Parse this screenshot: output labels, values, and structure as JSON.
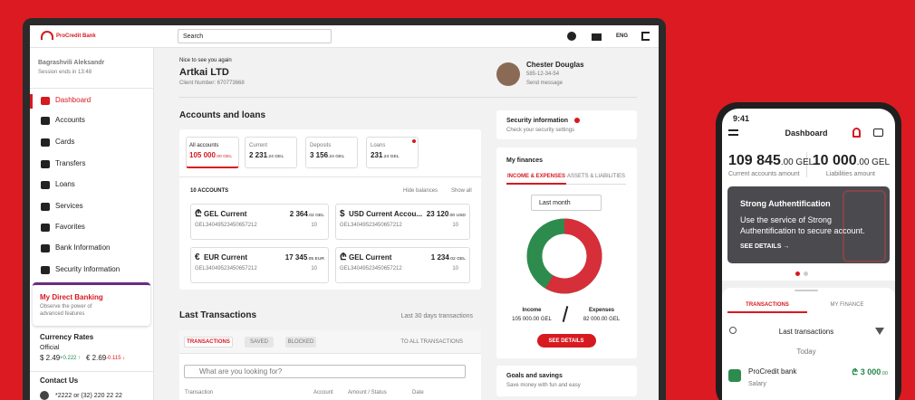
{
  "topbar": {
    "logo": "ProCredit Bank",
    "search": "Search",
    "language": "ENG"
  },
  "sidebar": {
    "user": "Bagrashvili Aleksandr",
    "session": "Session ends in 13:48",
    "menu": [
      "Dashboard",
      "Accounts",
      "Cards",
      "Transfers",
      "Loans",
      "Services",
      "Favorites",
      "Bank Information",
      "Security Information"
    ],
    "promo": {
      "title": "My Direct Banking",
      "text": "Observe the power of advanced features"
    },
    "currency": {
      "title": "Currency Rates",
      "type": "Official",
      "usd": "$ 2.49",
      "usd_change": "+0.222 ↑",
      "eur": "€ 2.69",
      "eur_change": "-0.115 ↓"
    },
    "contact": {
      "title": "Contact Us",
      "phone": "*2222 or (32) 220 22 22"
    }
  },
  "header": {
    "greeting": "Nice to see you again",
    "company": "Artkai LTD",
    "client": "Client Number: 670773668",
    "user": {
      "name": "Chester Douglas",
      "phone": "585-12-34-54",
      "action": "Send message"
    }
  },
  "accounts": {
    "title": "Accounts and loans",
    "tabs": [
      {
        "label": "All accounts",
        "amount": "105 000",
        "decimals": ".00 GEL"
      },
      {
        "label": "Current",
        "amount": "2 231",
        "decimals": ".24 GEL"
      },
      {
        "label": "Deposits",
        "amount": "3 156",
        "decimals": ".24 GEL"
      },
      {
        "label": "Loans",
        "amount": "231",
        "decimals": ".24 GEL"
      }
    ],
    "count": "10 ACCOUNTS",
    "hide": "Hide balances",
    "show_all": "Show all",
    "cards": [
      {
        "icon": "₾",
        "name": "GEL Current",
        "amount": "2 364",
        "decimals": ".02 GEL",
        "iban": "GEL34049523450657212",
        "count": "10"
      },
      {
        "icon": "$",
        "name": "USD Current Accou...",
        "amount": "23 120",
        "decimals": ".00 USD",
        "iban": "GEL34049523450657212",
        "count": "10"
      },
      {
        "icon": "€",
        "name": "EUR Current",
        "amount": "17 345",
        "decimals": ".05 EUR",
        "iban": "GEL34049523450657212",
        "count": "10"
      },
      {
        "icon": "₾",
        "name": "GEL Current",
        "amount": "1 234",
        "decimals": ".02 GEL",
        "iban": "GEL34049523450657212",
        "count": "10"
      }
    ]
  },
  "transactions": {
    "title": "Last Transactions",
    "period": "Last 30 days transactions",
    "tabs": [
      "TRANSACTIONS",
      "SAVED",
      "BLOCKED"
    ],
    "all": "TO ALL TRANSACTIONS",
    "search": "What are you looking for?",
    "columns": [
      "Transaction",
      "Account",
      "Amount / Status",
      "Date"
    ]
  },
  "security": {
    "title": "Security information",
    "subtitle": "Check your security settings"
  },
  "finances": {
    "title": "My finances",
    "tabs": [
      "INCOME & EXPENSES",
      "ASSETS & LIABILITIES"
    ],
    "period": "Last month",
    "income": {
      "label": "Income",
      "amount": "105 000.00 GEL"
    },
    "expenses": {
      "label": "Expenses",
      "amount": "82 000.00 GEL"
    },
    "button": "SEE DETAILS"
  },
  "goals": {
    "title": "Goals and savings",
    "subtitle": "Save money with fun and easy"
  },
  "mobile": {
    "time": "9:41",
    "title": "Dashboard",
    "balances": [
      {
        "amount": "109 845",
        "decimals": ".00 GEL",
        "label": "Current accounts amount"
      },
      {
        "amount": "10 000",
        "decimals": ".00 GEL",
        "label": "Liabilities amount"
      }
    ],
    "banner": {
      "title": "Strong Authentification",
      "text": "Use the service of Strong Authentification to secure account.",
      "link": "SEE DETAILS →"
    },
    "tabs": [
      "TRANSACTIONS",
      "MY FINANCE"
    ],
    "search": "Last transactions",
    "day": "Today",
    "item": {
      "name": "ProCredit bank",
      "category": "Salary",
      "amount": "₾ 3 000",
      "decimals": ".00"
    }
  }
}
